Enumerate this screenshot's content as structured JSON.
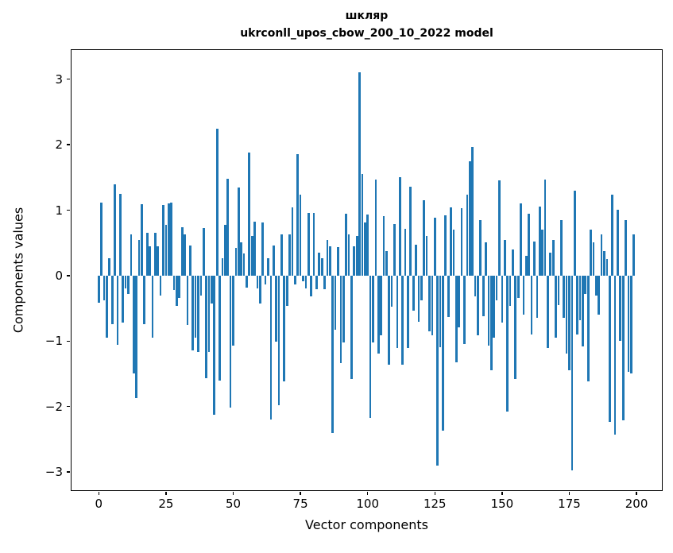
{
  "title": {
    "line1": "шкляр",
    "line2": "ukrconll_upos_cbow_200_10_2022 model"
  },
  "chart_data": {
    "type": "bar",
    "title": "шкляр — ukrconll_upos_cbow_200_10_2022 model",
    "xlabel": "Vector components",
    "ylabel": "Components values",
    "x_start": 0,
    "n_bars": 200,
    "bar_color": "#1f77b4",
    "grid": false,
    "legend_position": "none",
    "xlim": [
      -9.95,
      208.95
    ],
    "ylim": [
      -3.28,
      3.45
    ],
    "xticks": [
      0,
      25,
      50,
      75,
      100,
      125,
      150,
      175,
      200
    ],
    "xtick_labels": [
      "0",
      "25",
      "50",
      "75",
      "100",
      "125",
      "150",
      "175",
      "200"
    ],
    "yticks": [
      3,
      2,
      1,
      0,
      -1,
      -2,
      -3
    ],
    "ytick_labels": [
      "3",
      "2",
      "1",
      "0",
      "−1",
      "−2",
      "−3"
    ],
    "values": [
      -0.42,
      1.12,
      -0.38,
      -0.95,
      0.26,
      -0.74,
      1.39,
      -1.06,
      1.25,
      -0.72,
      -0.2,
      -0.28,
      0.63,
      -1.5,
      -1.87,
      0.55,
      1.09,
      -0.74,
      0.66,
      0.45,
      -0.95,
      0.65,
      0.45,
      -0.3,
      1.08,
      0.78,
      1.1,
      1.12,
      -0.22,
      -0.46,
      -0.34,
      0.74,
      0.63,
      -0.75,
      0.46,
      -1.14,
      -0.95,
      -1.17,
      -0.3,
      0.73,
      -1.57,
      -1.17,
      -0.43,
      -2.12,
      2.25,
      -1.6,
      0.26,
      0.78,
      1.48,
      -2.02,
      -1.07,
      0.42,
      1.35,
      0.51,
      0.34,
      -0.18,
      1.88,
      0.61,
      0.82,
      -0.2,
      -0.43,
      0.81,
      -0.13,
      0.26,
      -2.2,
      0.46,
      -1.01,
      -1.98,
      0.63,
      -1.62,
      -0.46,
      0.63,
      1.04,
      -0.14,
      1.85,
      1.24,
      -0.09,
      -0.2,
      0.96,
      -0.32,
      0.96,
      -0.21,
      0.35,
      0.26,
      -0.21,
      0.54,
      0.45,
      -2.4,
      -0.83,
      0.43,
      -1.34,
      -1.02,
      0.94,
      0.63,
      -1.58,
      0.45,
      0.6,
      3.1,
      1.55,
      0.81,
      0.93,
      -2.17,
      -1.02,
      1.47,
      -1.19,
      -0.91,
      0.91,
      0.38,
      -1.36,
      -0.47,
      0.79,
      -1.1,
      1.5,
      -1.36,
      0.71,
      -1.1,
      1.36,
      -0.53,
      0.47,
      -0.71,
      -0.38,
      1.15,
      0.61,
      -0.85,
      -0.91,
      0.89,
      -2.9,
      -1.09,
      -2.37,
      0.92,
      -0.63,
      1.04,
      0.7,
      -1.32,
      -0.79,
      1.03,
      -1.04,
      1.24,
      1.75,
      1.97,
      -0.32,
      -0.91,
      0.85,
      -0.62,
      0.51,
      -1.07,
      -1.45,
      -0.95,
      -0.38,
      1.45,
      -0.72,
      0.55,
      -2.08,
      -0.46,
      0.4,
      -1.58,
      -0.34,
      1.1,
      -0.6,
      0.3,
      0.94,
      -0.9,
      0.52,
      -0.65,
      1.05,
      0.7,
      1.47,
      -1.1,
      0.35,
      0.55,
      -0.95,
      -0.45,
      0.85,
      -0.65,
      -1.19,
      -1.45,
      -2.97,
      1.3,
      -0.9,
      -0.68,
      -1.08,
      -0.28,
      -1.62,
      0.7,
      0.51,
      -0.3,
      -0.6,
      0.63,
      0.38,
      0.25,
      -2.23,
      1.24,
      -2.43,
      1.01,
      -1.0,
      -2.21,
      0.85,
      -1.47,
      -1.5,
      0.63
    ]
  }
}
